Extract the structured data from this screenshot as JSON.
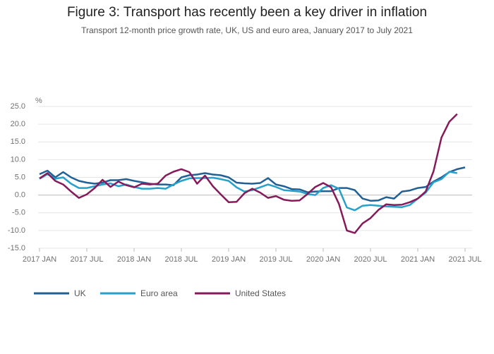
{
  "chart_data": {
    "type": "line",
    "title": "Figure 3: Transport has recently been a key driver in inflation",
    "subtitle": "Transport 12-month price growth rate, UK, US and euro area, January 2017 to July 2021",
    "y_unit": "%",
    "x": [
      "2017-01",
      "2017-02",
      "2017-03",
      "2017-04",
      "2017-05",
      "2017-06",
      "2017-07",
      "2017-08",
      "2017-09",
      "2017-10",
      "2017-11",
      "2017-12",
      "2018-01",
      "2018-02",
      "2018-03",
      "2018-04",
      "2018-05",
      "2018-06",
      "2018-07",
      "2018-08",
      "2018-09",
      "2018-10",
      "2018-11",
      "2018-12",
      "2019-01",
      "2019-02",
      "2019-03",
      "2019-04",
      "2019-05",
      "2019-06",
      "2019-07",
      "2019-08",
      "2019-09",
      "2019-10",
      "2019-11",
      "2019-12",
      "2020-01",
      "2020-02",
      "2020-03",
      "2020-04",
      "2020-05",
      "2020-06",
      "2020-07",
      "2020-08",
      "2020-09",
      "2020-10",
      "2020-11",
      "2020-12",
      "2021-01",
      "2021-02",
      "2021-03",
      "2021-04",
      "2021-05",
      "2021-06",
      "2021-07"
    ],
    "xticks": [
      {
        "value": "2017-01",
        "label": "2017 JAN"
      },
      {
        "value": "2017-07",
        "label": "2017 JUL"
      },
      {
        "value": "2018-01",
        "label": "2018 JAN"
      },
      {
        "value": "2018-07",
        "label": "2018 JUL"
      },
      {
        "value": "2019-01",
        "label": "2019 JAN"
      },
      {
        "value": "2019-07",
        "label": "2019 JUL"
      },
      {
        "value": "2020-01",
        "label": "2020 JAN"
      },
      {
        "value": "2020-07",
        "label": "2020 JUL"
      },
      {
        "value": "2021-01",
        "label": "2021 JAN"
      },
      {
        "value": "2021-07",
        "label": "2021 JUL"
      }
    ],
    "ylim": [
      -15,
      25
    ],
    "yticks": [
      {
        "value": 25,
        "label": "25.0"
      },
      {
        "value": 20,
        "label": "20.0"
      },
      {
        "value": 15,
        "label": "15.0"
      },
      {
        "value": 10,
        "label": "10.0"
      },
      {
        "value": 5,
        "label": "5.0"
      },
      {
        "value": 0,
        "label": "0.0"
      },
      {
        "value": -5,
        "label": "-5.0"
      },
      {
        "value": -10,
        "label": "-10.0"
      },
      {
        "value": -15,
        "label": "-15.0"
      }
    ],
    "grid": true,
    "legend": "bottom",
    "series": [
      {
        "name": "UK",
        "color": "#206095",
        "values": [
          5.9,
          6.9,
          5.0,
          6.5,
          5.0,
          4.0,
          3.5,
          3.2,
          3.5,
          4.2,
          4.2,
          4.5,
          4.0,
          3.6,
          3.2,
          3.0,
          3.0,
          2.8,
          5.0,
          5.6,
          5.8,
          6.2,
          5.8,
          5.6,
          5.0,
          3.5,
          3.3,
          3.2,
          3.4,
          4.8,
          3.0,
          2.5,
          1.7,
          1.6,
          0.8,
          1.0,
          1.1,
          1.1,
          2.0,
          2.0,
          1.4,
          -1.0,
          -1.6,
          -1.5,
          -0.6,
          -1.0,
          1.0,
          1.3,
          2.0,
          2.3,
          3.8,
          5.0,
          6.5,
          7.3,
          7.8
        ]
      },
      {
        "name": "Euro area",
        "color": "#27a0cc",
        "values": [
          4.6,
          5.9,
          4.6,
          5.0,
          3.2,
          2.0,
          2.0,
          2.5,
          3.0,
          3.3,
          2.5,
          3.0,
          2.3,
          1.8,
          1.8,
          2.0,
          1.8,
          3.0,
          4.0,
          4.7,
          4.8,
          4.8,
          4.9,
          4.5,
          4.0,
          2.2,
          1.0,
          1.4,
          2.2,
          3.0,
          2.3,
          1.4,
          1.2,
          1.0,
          0.3,
          0.0,
          2.0,
          2.8,
          1.8,
          -3.5,
          -4.3,
          -3.0,
          -2.8,
          -3.0,
          -3.2,
          -3.3,
          -3.4,
          -2.8,
          -1.0,
          0.7,
          3.6,
          4.5,
          6.6,
          6.2,
          null
        ]
      },
      {
        "name": "United States",
        "color": "#871a5b",
        "values": [
          4.7,
          6.2,
          4.0,
          3.0,
          1.0,
          -0.8,
          0.2,
          2.0,
          4.3,
          2.3,
          3.8,
          2.8,
          2.2,
          3.2,
          3.0,
          3.2,
          5.5,
          6.6,
          7.3,
          6.5,
          3.2,
          5.5,
          2.5,
          0.2,
          -2.0,
          -1.9,
          0.5,
          1.8,
          0.7,
          -0.8,
          -0.3,
          -1.3,
          -1.6,
          -1.5,
          0.3,
          2.3,
          3.4,
          2.2,
          -2.5,
          -10.0,
          -10.7,
          -8.0,
          -6.5,
          -4.2,
          -2.6,
          -2.8,
          -2.7,
          -2.0,
          -1.0,
          1.0,
          6.7,
          16.2,
          20.7,
          22.9,
          null
        ]
      }
    ]
  }
}
